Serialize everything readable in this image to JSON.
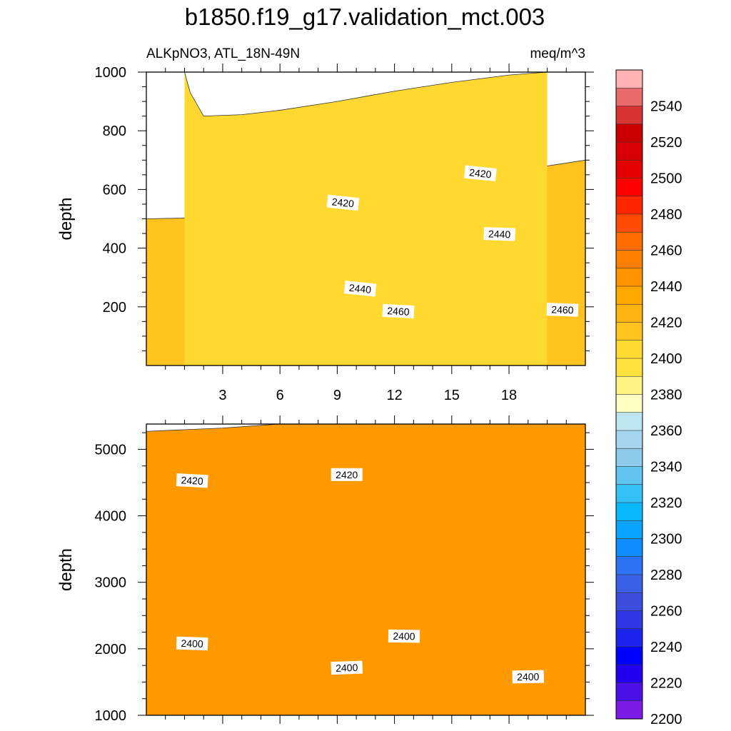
{
  "title": "b1850.f19_g17.validation_mct.003",
  "subtitle_left": "ALKpNO3, ATL_18N-49N",
  "subtitle_right": "meq/m^3",
  "chart_data": [
    {
      "type": "heatmap",
      "panel": "upper",
      "ylabel": "depth",
      "xlim": [
        -1,
        22
      ],
      "ylim": [
        1000,
        0
      ],
      "x_ticks": [
        3,
        6,
        9,
        12,
        15,
        18
      ],
      "y_ticks": [
        200,
        400,
        600,
        800,
        1000
      ],
      "bands": [
        {
          "upper": [
            [
              -1,
              0
            ],
            [
              22,
              0
            ]
          ],
          "fill": "#ff7000"
        },
        {
          "upper": [
            [
              7,
              0
            ],
            [
              9,
              90
            ],
            [
              14,
              90
            ],
            [
              14.5,
              50
            ],
            [
              16,
              40
            ],
            [
              18,
              60
            ],
            [
              20,
              50
            ],
            [
              22,
              40
            ]
          ],
          "fill": "#fc4b04"
        },
        {
          "upper": [
            [
              -1,
              0
            ],
            [
              1,
              0
            ],
            [
              1.5,
              100
            ],
            [
              4,
              130
            ],
            [
              6,
              140
            ],
            [
              9,
              160
            ],
            [
              13,
              175
            ],
            [
              16,
              180
            ],
            [
              19,
              185
            ],
            [
              22,
              190
            ]
          ],
          "fill": "#fd8500"
        },
        {
          "upper": [
            [
              -1,
              210
            ],
            [
              3,
              222
            ],
            [
              6,
              240
            ],
            [
              10,
              265
            ],
            [
              14,
              290
            ],
            [
              18,
              310
            ],
            [
              22,
              325
            ]
          ],
          "fill": "#fe9a00"
        },
        {
          "upper": [
            [
              -1,
              350
            ],
            [
              3,
              355
            ],
            [
              6,
              368
            ],
            [
              10,
              400
            ],
            [
              14,
              430
            ],
            [
              18,
              460
            ],
            [
              22,
              480
            ]
          ],
          "fill": "#feb30e"
        },
        {
          "upper": [
            [
              -1,
              500
            ],
            [
              3,
              505
            ],
            [
              6,
              525
            ],
            [
              10,
              565
            ],
            [
              14,
              610
            ],
            [
              18,
              660
            ],
            [
              22,
              700
            ]
          ],
          "fill": "#ffc320"
        },
        {
          "upper": [
            [
              1,
              1000
            ],
            [
              1.3,
              930
            ],
            [
              2,
              850
            ],
            [
              4,
              855
            ],
            [
              6,
              870
            ],
            [
              9,
              900
            ],
            [
              12,
              935
            ],
            [
              15,
              965
            ],
            [
              18,
              990
            ],
            [
              20,
              1000
            ]
          ],
          "fill": "#ffd931"
        }
      ],
      "contour_labels": [
        {
          "x": 12.2,
          "y": 185,
          "text": "2460",
          "angle": 3
        },
        {
          "x": 20.8,
          "y": 190,
          "text": "2460",
          "angle": 2
        },
        {
          "x": 10.2,
          "y": 262,
          "text": "2440",
          "angle": 6
        },
        {
          "x": 17.5,
          "y": 448,
          "text": "2440",
          "angle": 2
        },
        {
          "x": 9.3,
          "y": 555,
          "text": "2420",
          "angle": 6
        },
        {
          "x": 16.5,
          "y": 655,
          "text": "2420",
          "angle": 6
        }
      ]
    },
    {
      "type": "heatmap",
      "panel": "lower",
      "ylabel": "depth",
      "xlim": [
        -1,
        22
      ],
      "ylim": [
        5380,
        1000
      ],
      "x_ticks": [
        3,
        6,
        9,
        12,
        15,
        18
      ],
      "y_ticks": [
        1000,
        2000,
        3000,
        4000,
        5000
      ],
      "bands": [
        {
          "upper": [
            [
              -1,
              1000
            ],
            [
              22,
              1000
            ]
          ],
          "fill": "#ffd931"
        },
        {
          "upper": [
            [
              -1,
              1780
            ],
            [
              3,
              1780
            ],
            [
              6,
              1770
            ],
            [
              10,
              1730
            ],
            [
              14,
              1650
            ],
            [
              18,
              1580
            ],
            [
              22,
              1550
            ]
          ],
          "fill": "#ffee61"
        },
        {
          "upper": [
            [
              -1,
              2020
            ],
            [
              3,
              2030
            ],
            [
              6,
              2060
            ],
            [
              10,
              2110
            ],
            [
              14,
              2180
            ],
            [
              18,
              2230
            ],
            [
              22,
              2250
            ]
          ],
          "fill": "#ffd931"
        },
        {
          "upper": [
            [
              -1,
              2950
            ],
            [
              3,
              2990
            ],
            [
              6,
              3000
            ],
            [
              10,
              3010
            ],
            [
              14,
              3020
            ],
            [
              18,
              3040
            ],
            [
              22,
              3050
            ]
          ],
          "fill": "#ffc320"
        },
        {
          "upper": [
            [
              -1,
              4450
            ],
            [
              3,
              4490
            ],
            [
              6,
              4520
            ],
            [
              10,
              4580
            ],
            [
              14,
              4610
            ],
            [
              18,
              4600
            ],
            [
              22,
              4590
            ]
          ],
          "fill": "#feb30e"
        },
        {
          "upper": [
            [
              -1,
              5270
            ],
            [
              3,
              5320
            ],
            [
              6,
              5380
            ],
            [
              22,
              5380
            ]
          ],
          "fill": "#fe9a00"
        }
      ],
      "contour_labels": [
        {
          "x": 9.5,
          "y": 1715,
          "text": "2400",
          "angle": -2
        },
        {
          "x": 19.0,
          "y": 1580,
          "text": "2400",
          "angle": -1
        },
        {
          "x": 1.4,
          "y": 2080,
          "text": "2400",
          "angle": 2
        },
        {
          "x": 12.5,
          "y": 2190,
          "text": "2400",
          "angle": 1
        },
        {
          "x": 1.4,
          "y": 4530,
          "text": "2420",
          "angle": 3
        },
        {
          "x": 9.5,
          "y": 4620,
          "text": "2420",
          "angle": 0
        }
      ]
    }
  ],
  "colorbar": {
    "labels": [
      "2540",
      "2520",
      "2500",
      "2480",
      "2460",
      "2440",
      "2420",
      "2400",
      "2380",
      "2360",
      "2340",
      "2320",
      "2300",
      "2280",
      "2260",
      "2240",
      "2220",
      "2200"
    ],
    "colors": [
      "#ffb2b2",
      "#ea6b6b",
      "#d93434",
      "#cb0000",
      "#d80006",
      "#e50000",
      "#ff0000",
      "#ff2700",
      "#fd4b04",
      "#ff6c00",
      "#fe7f00",
      "#fe9300",
      "#fea800",
      "#feb40f",
      "#ffc31f",
      "#ffda31",
      "#ffe23e",
      "#fff483",
      "#ffffc6",
      "#bde5f2",
      "#a5d5ee",
      "#8ecbea",
      "#61c5ef",
      "#34c2f6",
      "#0bb8fc",
      "#0aa3ff",
      "#108cff",
      "#2c74f5",
      "#3b60e5",
      "#3c4de0",
      "#2f37e7",
      "#1d24f0",
      "#0000fe",
      "#2100f0",
      "#4b0fe8",
      "#7c1ae8"
    ]
  }
}
